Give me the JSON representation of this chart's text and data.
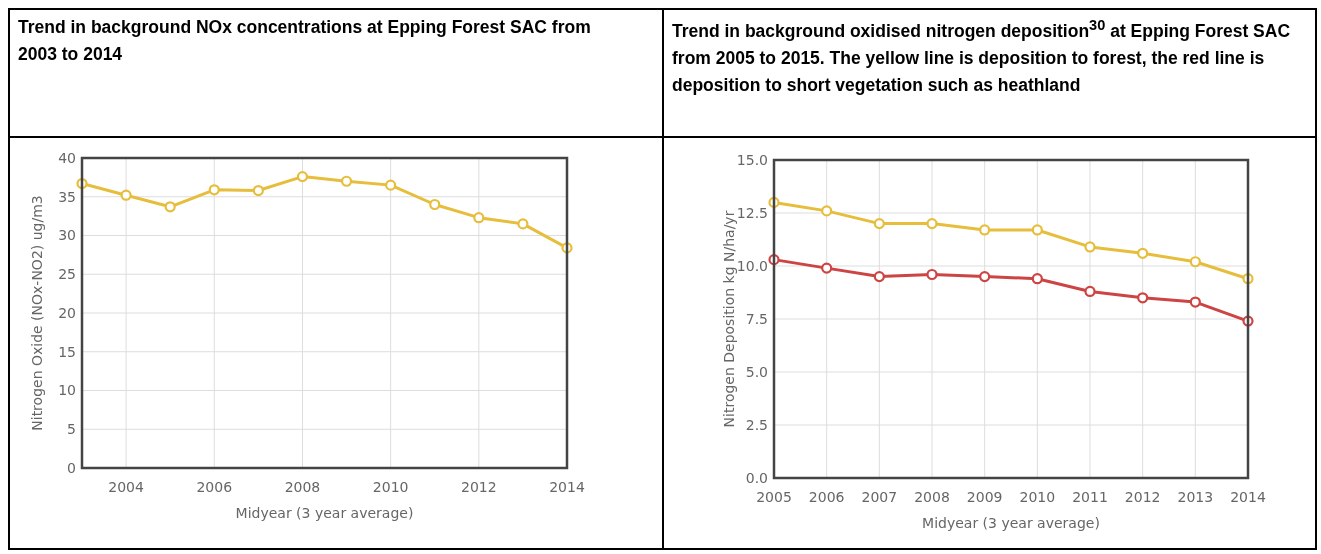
{
  "chart_data": [
    {
      "type": "line",
      "title": "Trend in background NOx concentrations at Epping Forest SAC from 2003 to 2014",
      "xlabel": "Midyear (3 year average)",
      "ylabel": "Nitrogen Oxide (NOx-NO2) ug/m3",
      "x": [
        2003,
        2004,
        2005,
        2006,
        2007,
        2008,
        2009,
        2010,
        2011,
        2012,
        2013,
        2014
      ],
      "series": [
        {
          "color": "#e6be3c",
          "values": [
            36.7,
            35.2,
            33.7,
            35.9,
            35.8,
            37.6,
            37.0,
            36.5,
            34.0,
            32.3,
            31.5,
            28.4
          ]
        }
      ],
      "xlim": [
        2003,
        2014
      ],
      "xticks": [
        2004,
        2006,
        2008,
        2010,
        2012,
        2014
      ],
      "ylim": [
        0,
        40
      ],
      "yticks": [
        0,
        5,
        10,
        15,
        20,
        25,
        30,
        35,
        40
      ],
      "grid": true,
      "marker": "circle",
      "line_style": "solid"
    },
    {
      "type": "line",
      "title": "Trend in background oxidised nitrogen deposition$^{30}$  at Epping Forest SAC from 2005 to 2015. The yellow line is deposition to forest, the red line is deposition to short vegetation such as heathland",
      "xlabel": "Midyear (3 year average)",
      "ylabel": "Nitrogen Deposition kg N/ha/yr",
      "x": [
        2005,
        2006,
        2007,
        2008,
        2009,
        2010,
        2011,
        2012,
        2013,
        2014
      ],
      "series": [
        {
          "color": "#e6be3c",
          "values": [
            13.0,
            12.6,
            12.0,
            12.0,
            11.7,
            11.7,
            10.9,
            10.6,
            10.2,
            9.4
          ]
        },
        {
          "color": "#cc4444",
          "values": [
            10.3,
            9.9,
            9.5,
            9.6,
            9.5,
            9.4,
            8.8,
            8.5,
            8.3,
            7.4
          ]
        }
      ],
      "xlim": [
        2005,
        2014
      ],
      "xticks": [
        2005,
        2006,
        2007,
        2008,
        2009,
        2010,
        2011,
        2012,
        2013,
        2014
      ],
      "ylim": [
        0,
        15
      ],
      "yticks": [
        {
          "value": 0,
          "label": "0.0"
        },
        {
          "value": 2.5,
          "label": "2.5"
        },
        {
          "value": 5,
          "label": "5.0"
        },
        {
          "value": 7.5,
          "label": "7.5"
        },
        {
          "value": 10,
          "label": "10.0"
        },
        {
          "value": 12.5,
          "label": "12.5"
        },
        {
          "value": 15,
          "label": "15.0"
        }
      ],
      "grid": true,
      "marker": "circle",
      "line_style": "solid"
    }
  ]
}
